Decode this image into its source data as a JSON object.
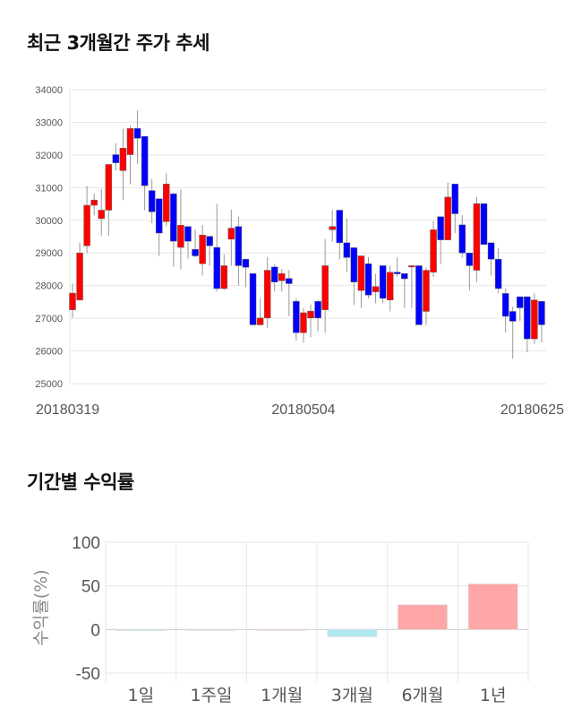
{
  "sections": {
    "price_title": "최근 3개월간 주가 추세",
    "return_title": "기간별 수익률"
  },
  "colors": {
    "up": "#ff0000",
    "down": "#0000ff",
    "positive_bar": "#ffa6a6",
    "negative_bar": "#b0e8f0",
    "grid": "#e6e6e6"
  },
  "chart_data": [
    {
      "type": "candlestick",
      "title": "최근 3개월간 주가 추세",
      "ylim": [
        25000,
        34000
      ],
      "yticks": [
        25000,
        26000,
        27000,
        28000,
        29000,
        30000,
        31000,
        32000,
        33000,
        34000
      ],
      "xticks": [
        {
          "index": 0,
          "label": "20180319"
        },
        {
          "index": 32,
          "label": "20180504"
        },
        {
          "index": 65,
          "label": "20180625"
        }
      ],
      "grid": true,
      "ohlc": [
        [
          27260,
          28060,
          27010,
          27770
        ],
        [
          27560,
          29320,
          27560,
          29000
        ],
        [
          29220,
          31060,
          29000,
          30460
        ],
        [
          30460,
          30820,
          30150,
          30620
        ],
        [
          30050,
          30960,
          29530,
          30310
        ],
        [
          30310,
          31710,
          29530,
          31710
        ],
        [
          32010,
          32360,
          31520,
          31760
        ],
        [
          31520,
          32810,
          30620,
          32210
        ],
        [
          32010,
          32900,
          31100,
          32810
        ],
        [
          32810,
          33360,
          31720,
          32510
        ],
        [
          32570,
          32570,
          30310,
          31060
        ],
        [
          30910,
          31260,
          29910,
          30260
        ],
        [
          30660,
          30660,
          28910,
          29610
        ],
        [
          29960,
          31440,
          29820,
          31110
        ],
        [
          30810,
          30850,
          28570,
          29360
        ],
        [
          29170,
          30950,
          28500,
          29850
        ],
        [
          29810,
          29810,
          28830,
          29360
        ],
        [
          29110,
          29730,
          28870,
          28910
        ],
        [
          28670,
          29860,
          28310,
          29550
        ],
        [
          29510,
          29510,
          28610,
          29220
        ],
        [
          29170,
          30510,
          27820,
          27910
        ],
        [
          27910,
          28960,
          27860,
          28610
        ],
        [
          29420,
          30320,
          28610,
          29760
        ],
        [
          29810,
          30110,
          28000,
          28610
        ],
        [
          28810,
          28810,
          27950,
          28560
        ],
        [
          28370,
          28370,
          26770,
          26800
        ],
        [
          26800,
          27620,
          26770,
          27010
        ],
        [
          27010,
          28870,
          26710,
          28470
        ],
        [
          28570,
          28660,
          27820,
          28110
        ],
        [
          28150,
          28510,
          27820,
          28370
        ],
        [
          28220,
          28470,
          27060,
          28060
        ],
        [
          27520,
          27610,
          26310,
          26560
        ],
        [
          26560,
          27320,
          26260,
          27170
        ],
        [
          27010,
          27420,
          26420,
          27220
        ],
        [
          27520,
          27560,
          26600,
          27010
        ],
        [
          27260,
          29420,
          26560,
          28610
        ],
        [
          29710,
          30310,
          29340,
          29810
        ],
        [
          30310,
          30310,
          28810,
          29310
        ],
        [
          29310,
          30050,
          28410,
          28860
        ],
        [
          29160,
          29160,
          27410,
          28110
        ],
        [
          27850,
          28910,
          27320,
          28910
        ],
        [
          28670,
          28870,
          27610,
          27710
        ],
        [
          27810,
          28360,
          27460,
          27970
        ],
        [
          28610,
          28610,
          27460,
          27610
        ],
        [
          27560,
          28610,
          27210,
          28410
        ],
        [
          28410,
          28870,
          28270,
          28360
        ],
        [
          28370,
          28370,
          27320,
          28210
        ],
        [
          28610,
          28610,
          27320,
          28610
        ],
        [
          28610,
          28610,
          26800,
          26800
        ],
        [
          27210,
          28560,
          26800,
          28470
        ],
        [
          28410,
          29980,
          28270,
          29710
        ],
        [
          30110,
          30110,
          28670,
          29400
        ],
        [
          29400,
          31160,
          29400,
          30710
        ],
        [
          31110,
          31110,
          29610,
          30200
        ],
        [
          29860,
          30160,
          28860,
          29000
        ],
        [
          29000,
          29000,
          27860,
          28610
        ],
        [
          28470,
          30710,
          28110,
          30510
        ],
        [
          30510,
          30510,
          29260,
          29260
        ],
        [
          29310,
          29310,
          28310,
          28810
        ],
        [
          28810,
          29160,
          27760,
          27910
        ],
        [
          27760,
          27910,
          26560,
          27060
        ],
        [
          27210,
          27360,
          25760,
          26910
        ],
        [
          27660,
          27660,
          26910,
          27320
        ],
        [
          27660,
          27660,
          25960,
          26370
        ],
        [
          26370,
          27760,
          26220,
          27560
        ],
        [
          27520,
          27520,
          26260,
          26800
        ]
      ]
    },
    {
      "type": "bar",
      "title": "기간별 수익률",
      "ylabel": "수익률(%)",
      "ylim": [
        -50,
        100
      ],
      "yticks": [
        -50,
        0,
        50,
        100
      ],
      "categories": [
        "1일",
        "1주일",
        "1개월",
        "3개월",
        "6개월",
        "1년"
      ],
      "values": [
        -1.2,
        -0.6,
        0,
        -8.2,
        28.3,
        52.2
      ],
      "grid": true
    }
  ]
}
